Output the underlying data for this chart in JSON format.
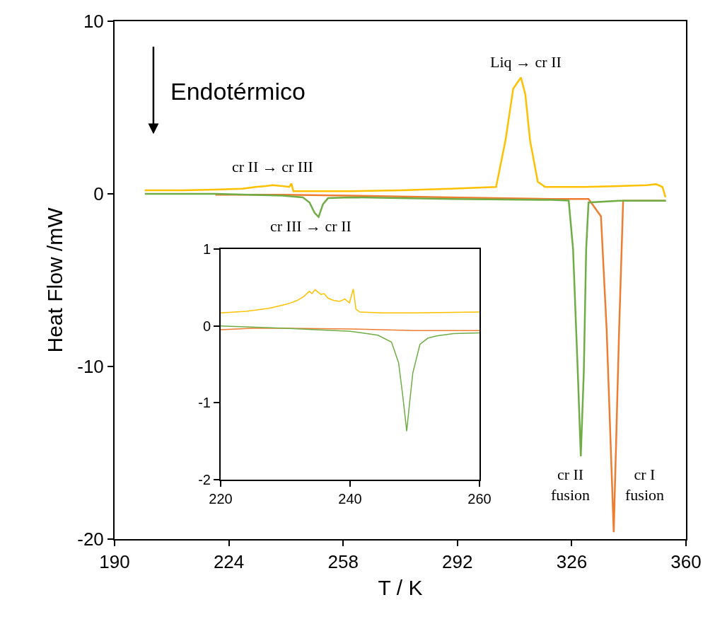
{
  "chart_data": [
    {
      "type": "line",
      "xlabel": "T / K",
      "ylabel": "Heat Flow /mW",
      "xlim": [
        190,
        360
      ],
      "xticks": [
        190,
        224,
        258,
        292,
        326,
        360
      ],
      "ylim": [
        -20,
        10
      ],
      "yticks": [
        -20,
        -10,
        0,
        10
      ],
      "marker": "none",
      "line_style": "solid",
      "annotations": [
        "Endotérmico",
        "Liq → cr II",
        "cr II → cr III",
        "cr III → cr II",
        "cr II\nfusion",
        "cr I\nfusion"
      ],
      "series": [
        {
          "color": "#ffc000",
          "x": [
            199,
            210,
            220,
            228,
            232,
            235,
            237,
            240,
            242,
            242.6,
            243.2,
            250,
            260,
            275,
            290,
            303.5,
            306.3,
            308.6,
            310.9,
            312.2,
            313.6,
            315.9,
            318.1,
            330,
            340,
            348.4,
            351.1,
            353,
            353.9
          ],
          "values": [
            0.2,
            0.2,
            0.25,
            0.3,
            0.4,
            0.45,
            0.5,
            0.45,
            0.4,
            0.6,
            0.15,
            0.15,
            0.15,
            0.2,
            0.3,
            0.4,
            3.1,
            6.1,
            6.74,
            5.76,
            3.1,
            0.7,
            0.4,
            0.4,
            0.45,
            0.5,
            0.56,
            0.4,
            -0.2
          ]
        },
        {
          "color": "#ed7d31",
          "x": [
            220,
            240,
            260,
            290,
            320,
            331,
            334.7,
            336.4,
            338.5,
            340.1,
            341.3,
            345,
            354
          ],
          "values": [
            -0.05,
            -0.05,
            -0.1,
            -0.2,
            -0.3,
            -0.3,
            -1.3,
            -7.9,
            -19.6,
            -7.9,
            -0.4,
            -0.4,
            -0.4
          ]
        },
        {
          "color": "#70ad47",
          "x": [
            199,
            220,
            240,
            246,
            248,
            249.5,
            250.7,
            252,
            253.5,
            260,
            290,
            320,
            325.1,
            326.4,
            327.8,
            328.7,
            329.6,
            330.3,
            331,
            340,
            354
          ],
          "values": [
            0,
            0,
            -0.1,
            -0.2,
            -0.5,
            -1.1,
            -1.34,
            -0.6,
            -0.25,
            -0.2,
            -0.3,
            -0.35,
            -0.39,
            -3.2,
            -10.3,
            -15.2,
            -10.3,
            -3.2,
            -0.5,
            -0.4,
            -0.4
          ]
        }
      ]
    },
    {
      "type": "line",
      "xlim": [
        220,
        260
      ],
      "xticks": [
        220,
        240,
        260
      ],
      "ylim": [
        -2,
        1
      ],
      "yticks": [
        -2,
        -1,
        0,
        1
      ],
      "marker": "none",
      "line_style": "solid",
      "series": [
        {
          "color": "#ffc000",
          "x": [
            220,
            224,
            227.5,
            229.6,
            230.5,
            231.8,
            232.8,
            233.7,
            234.1,
            234.6,
            235.5,
            236,
            236.6,
            237.5,
            238.4,
            239.2,
            239.9,
            240.5,
            240.9,
            241.5,
            245,
            250,
            260
          ],
          "values": [
            0.17,
            0.19,
            0.23,
            0.27,
            0.29,
            0.33,
            0.38,
            0.45,
            0.42,
            0.47,
            0.41,
            0.42,
            0.36,
            0.33,
            0.32,
            0.35,
            0.3,
            0.48,
            0.22,
            0.18,
            0.17,
            0.17,
            0.18
          ]
        },
        {
          "color": "#ed7d31",
          "x": [
            220,
            225,
            230,
            240,
            250,
            260
          ],
          "values": [
            -0.05,
            -0.03,
            -0.03,
            -0.04,
            -0.06,
            -0.06
          ]
        },
        {
          "color": "#70ad47",
          "x": [
            220,
            230,
            240,
            244.3,
            246.4,
            247.5,
            248.2,
            248.75,
            249.2,
            249.7,
            250.8,
            252,
            253.4,
            256,
            260
          ],
          "values": [
            0,
            -0.03,
            -0.07,
            -0.12,
            -0.21,
            -0.48,
            -0.95,
            -1.37,
            -1.0,
            -0.61,
            -0.24,
            -0.16,
            -0.13,
            -0.1,
            -0.09
          ]
        }
      ]
    }
  ]
}
